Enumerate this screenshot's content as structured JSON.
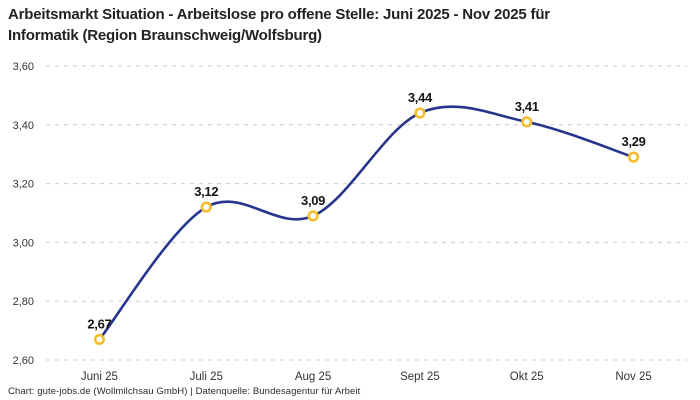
{
  "header": {
    "title_lines": [
      "Arbeitsmarkt Situation - Arbeitslose pro offene Stelle: Juni 2025 - Nov 2025 für",
      "Informatik (Region Braunschweig/Wolfsburg)"
    ]
  },
  "footer": {
    "credit": "Chart: gute-jobs.de (Wollmilchsau GmbH) | Datenquelle: Bundesagentur für Arbeit"
  },
  "chart_data": {
    "type": "line",
    "title": "Arbeitsmarkt Situation - Arbeitslose pro offene Stelle: Juni 2025 - Nov 2025 für Informatik (Region Braunschweig/Wolfsburg)",
    "categories": [
      "Juni 25",
      "Juli 25",
      "Aug 25",
      "Sept 25",
      "Okt 25",
      "Nov 25"
    ],
    "values": [
      2.67,
      3.12,
      3.09,
      3.44,
      3.41,
      3.29
    ],
    "value_labels": [
      "2,67",
      "3,12",
      "3,09",
      "3,44",
      "3,41",
      "3,29"
    ],
    "xlabel": "",
    "ylabel": "",
    "ylim": [
      2.6,
      3.6
    ],
    "y_tick_values": [
      3.6,
      3.4,
      3.2,
      3.0,
      2.8,
      2.6
    ],
    "y_tick_labels": [
      "3,60",
      "3,40",
      "3,20",
      "3,00",
      "2,80",
      "2,60"
    ],
    "grid": "horizontal-dashed",
    "legend_position": "none",
    "line_style": "smooth-spline",
    "marker": "open-circle",
    "colors": {
      "line": "#27358C",
      "marker_stroke": "#F5BE2E",
      "marker_fill": "#FFFFFF",
      "grid": "#CBCBCB",
      "axis_text": "#333333",
      "label_text": "#141414",
      "title_text": "#222222"
    }
  }
}
